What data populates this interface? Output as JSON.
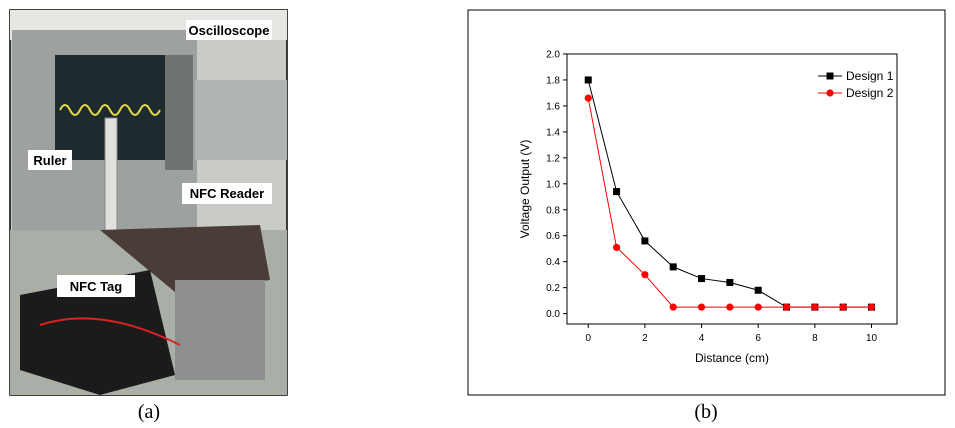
{
  "photo": {
    "labels": [
      "Oscilloscope",
      "Ruler",
      "NFC Reader",
      "NFC Tag"
    ]
  },
  "captions": [
    "(a)",
    "(b)"
  ],
  "chart_data": {
    "type": "line",
    "x_label": "Distance (cm)",
    "y_label": "Voltage Output (V)",
    "x": [
      0,
      1,
      2,
      3,
      4,
      5,
      6,
      7,
      8,
      9,
      10
    ],
    "series": [
      {
        "name": "Design 1",
        "color": "#000000",
        "marker": "square",
        "values": [
          1.8,
          0.94,
          0.56,
          0.36,
          0.27,
          0.24,
          0.18,
          0.05,
          0.05,
          0.05,
          0.05
        ]
      },
      {
        "name": "Design 2",
        "color": "#ff0000",
        "marker": "circle",
        "values": [
          1.66,
          0.51,
          0.3,
          0.05,
          0.05,
          0.05,
          0.05,
          0.05,
          0.05,
          0.05,
          0.05
        ]
      }
    ],
    "xlim": [
      -0.75,
      10.9
    ],
    "ylim": [
      -0.08,
      2.0
    ],
    "xticks": [
      0,
      2,
      4,
      6,
      8,
      10
    ],
    "yticks": [
      {
        "value": 0,
        "label": "0.0"
      },
      0.2,
      0.4,
      0.6,
      0.8,
      {
        "value": 1,
        "label": "1.0"
      },
      1.2,
      1.4,
      1.6,
      1.8,
      {
        "value": 2,
        "label": "2.0"
      }
    ],
    "legend": "upper right"
  }
}
